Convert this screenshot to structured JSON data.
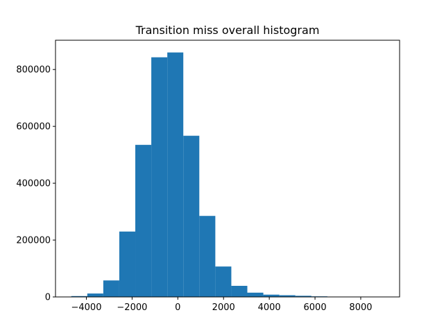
{
  "chart_data": {
    "type": "bar",
    "title": "Transition miss overall histogram",
    "xlabel": "",
    "ylabel": "",
    "xlim": [
      -5350,
      9700
    ],
    "ylim": [
      0,
      903000
    ],
    "xticks": [
      -4000,
      -2000,
      0,
      2000,
      4000,
      6000,
      8000
    ],
    "xtick_labels": [
      "−4000",
      "−2000",
      "0",
      "2000",
      "4000",
      "6000",
      "8000"
    ],
    "yticks": [
      0,
      200000,
      400000,
      600000,
      800000
    ],
    "ytick_labels": [
      "0",
      "200000",
      "400000",
      "600000",
      "800000"
    ],
    "grid": false,
    "bin_edges": [
      -4660,
      -3960,
      -3260,
      -2560,
      -1860,
      -1160,
      -460,
      240,
      940,
      1640,
      2340,
      3040,
      3740,
      4440,
      5140,
      5840,
      6540,
      7240,
      7940,
      8640,
      9340
    ],
    "values": [
      3000,
      12000,
      58000,
      230000,
      535000,
      843000,
      860000,
      567000,
      285000,
      107000,
      39000,
      15000,
      8000,
      6000,
      4000,
      2000,
      800,
      500,
      300,
      200
    ],
    "color": "#1f77b4"
  }
}
